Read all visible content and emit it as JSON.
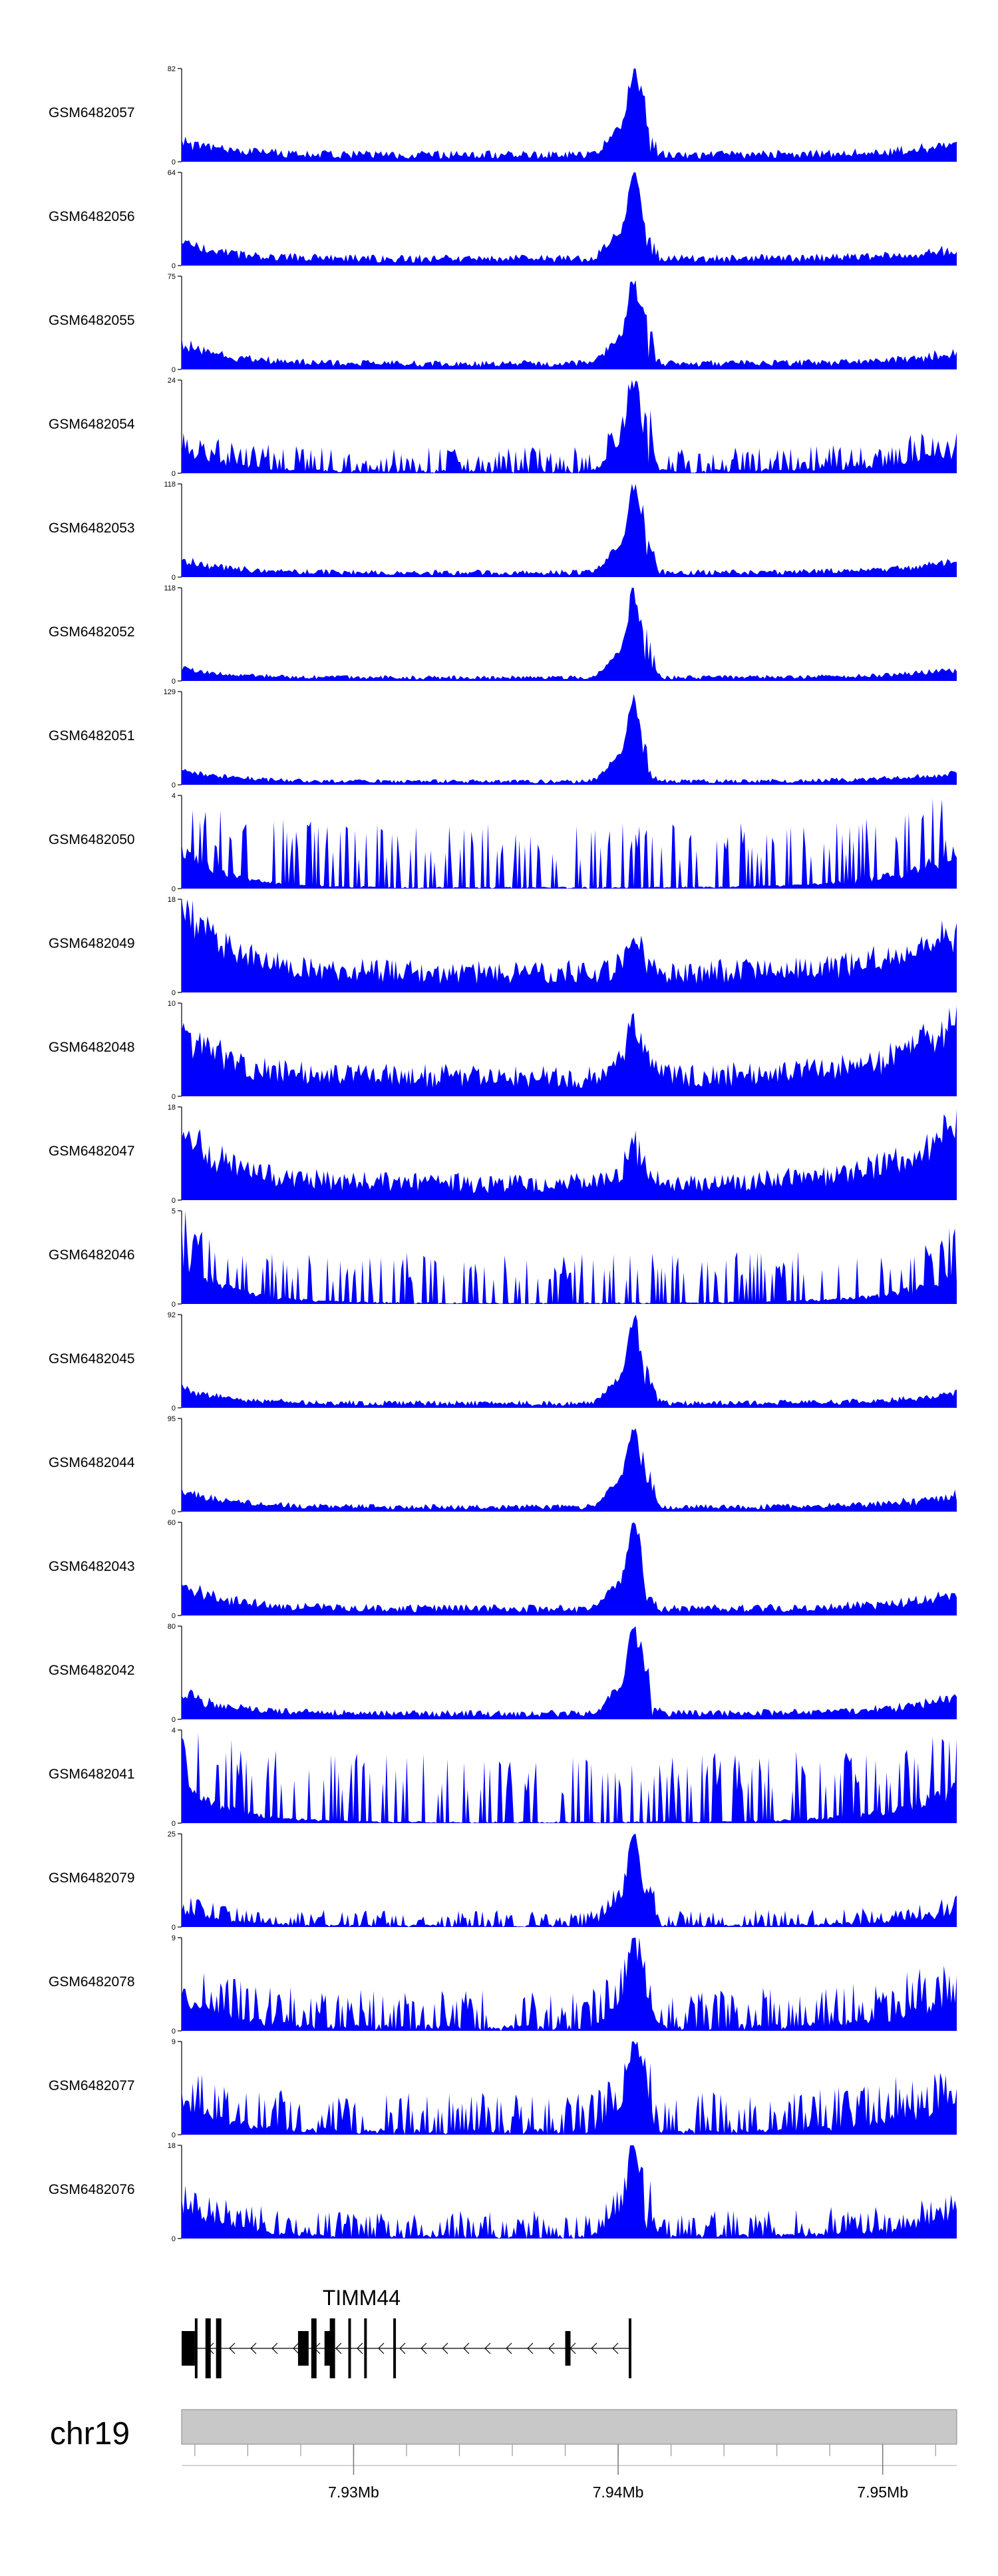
{
  "chart_data": {
    "type": "area",
    "chromosome": "chr19",
    "x_range": [
      7.9235,
      7.9528
    ],
    "x_unit": "Mb",
    "x_ticks": [
      "7.93Mb",
      "7.94Mb",
      "7.95Mb"
    ],
    "x_tick_values": [
      7.93,
      7.94,
      7.95
    ],
    "series": [
      {
        "name": "GSM6482057",
        "ymax": 82,
        "ytick_top": "82",
        "ytick_bottom": "0",
        "profile": "peak",
        "noise": 0.12,
        "edge_left": 0.18,
        "edge_right": 0.16,
        "peak_height": 1.0,
        "seed": 11
      },
      {
        "name": "GSM6482056",
        "ymax": 64,
        "ytick_top": "64",
        "ytick_bottom": "0",
        "profile": "peak",
        "noise": 0.12,
        "edge_left": 0.22,
        "edge_right": 0.14,
        "peak_height": 1.0,
        "seed": 12
      },
      {
        "name": "GSM6482055",
        "ymax": 75,
        "ytick_top": "75",
        "ytick_bottom": "0",
        "profile": "peak",
        "noise": 0.1,
        "edge_left": 0.28,
        "edge_right": 0.16,
        "peak_height": 1.0,
        "seed": 13
      },
      {
        "name": "GSM6482054",
        "ymax": 24,
        "ytick_top": "24",
        "ytick_bottom": "0",
        "profile": "peak-spiky",
        "noise": 0.28,
        "edge_left": 0.3,
        "edge_right": 0.3,
        "peak_height": 1.0,
        "seed": 14
      },
      {
        "name": "GSM6482053",
        "ymax": 118,
        "ytick_top": "118",
        "ytick_bottom": "0",
        "profile": "peak",
        "noise": 0.08,
        "edge_left": 0.18,
        "edge_right": 0.16,
        "peak_height": 1.0,
        "seed": 15
      },
      {
        "name": "GSM6482052",
        "ymax": 118,
        "ytick_top": "118",
        "ytick_bottom": "0",
        "profile": "peak",
        "noise": 0.06,
        "edge_left": 0.12,
        "edge_right": 0.12,
        "peak_height": 0.97,
        "seed": 16
      },
      {
        "name": "GSM6482051",
        "ymax": 129,
        "ytick_top": "129",
        "ytick_bottom": "0",
        "profile": "peak",
        "noise": 0.06,
        "edge_left": 0.16,
        "edge_right": 0.12,
        "peak_height": 0.97,
        "seed": 17
      },
      {
        "name": "GSM6482050",
        "ymax": 4,
        "ytick_top": "4",
        "ytick_bottom": "0",
        "profile": "spiky",
        "noise": 0.7,
        "edge_left": 0.5,
        "edge_right": 0.5,
        "peak_height": 0.6,
        "seed": 18
      },
      {
        "name": "GSM6482049",
        "ymax": 18,
        "ytick_top": "18",
        "ytick_bottom": "0",
        "profile": "noisy-high",
        "noise": 0.35,
        "edge_left": 0.95,
        "edge_right": 0.65,
        "peak_height": 0.55,
        "seed": 19
      },
      {
        "name": "GSM6482048",
        "ymax": 10,
        "ytick_top": "10",
        "ytick_bottom": "0",
        "profile": "noisy-high",
        "noise": 0.35,
        "edge_left": 0.65,
        "edge_right": 0.85,
        "peak_height": 0.8,
        "seed": 20
      },
      {
        "name": "GSM6482047",
        "ymax": 18,
        "ytick_top": "18",
        "ytick_bottom": "0",
        "profile": "noisy-high",
        "noise": 0.3,
        "edge_left": 0.75,
        "edge_right": 0.85,
        "peak_height": 0.5,
        "seed": 21
      },
      {
        "name": "GSM6482046",
        "ymax": 5,
        "ytick_top": "5",
        "ytick_bottom": "0",
        "profile": "spiky",
        "noise": 0.55,
        "edge_left": 0.6,
        "edge_right": 0.4,
        "peak_height": 0.5,
        "seed": 22
      },
      {
        "name": "GSM6482045",
        "ymax": 92,
        "ytick_top": "92",
        "ytick_bottom": "0",
        "profile": "peak",
        "noise": 0.08,
        "edge_left": 0.2,
        "edge_right": 0.14,
        "peak_height": 0.95,
        "seed": 23
      },
      {
        "name": "GSM6482044",
        "ymax": 95,
        "ytick_top": "95",
        "ytick_bottom": "0",
        "profile": "peak",
        "noise": 0.08,
        "edge_left": 0.22,
        "edge_right": 0.18,
        "peak_height": 0.97,
        "seed": 24
      },
      {
        "name": "GSM6482043",
        "ymax": 60,
        "ytick_top": "60",
        "ytick_bottom": "0",
        "profile": "peak",
        "noise": 0.12,
        "edge_left": 0.32,
        "edge_right": 0.22,
        "peak_height": 0.98,
        "seed": 25
      },
      {
        "name": "GSM6482042",
        "ymax": 80,
        "ytick_top": "80",
        "ytick_bottom": "0",
        "profile": "peak",
        "noise": 0.1,
        "edge_left": 0.28,
        "edge_right": 0.24,
        "peak_height": 0.97,
        "seed": 26
      },
      {
        "name": "GSM6482041",
        "ymax": 4,
        "ytick_top": "4",
        "ytick_bottom": "0",
        "profile": "spiky",
        "noise": 0.75,
        "edge_left": 0.5,
        "edge_right": 0.5,
        "peak_height": 0.6,
        "seed": 27
      },
      {
        "name": "GSM6482079",
        "ymax": 25,
        "ytick_top": "25",
        "ytick_bottom": "0",
        "profile": "peak-spiky",
        "noise": 0.18,
        "edge_left": 0.2,
        "edge_right": 0.2,
        "peak_height": 0.95,
        "seed": 28
      },
      {
        "name": "GSM6482078",
        "ymax": 9,
        "ytick_top": "9",
        "ytick_bottom": "0",
        "profile": "peak-spiky",
        "noise": 0.45,
        "edge_left": 0.45,
        "edge_right": 0.45,
        "peak_height": 0.95,
        "seed": 29
      },
      {
        "name": "GSM6482077",
        "ymax": 9,
        "ytick_top": "9",
        "ytick_bottom": "0",
        "profile": "peak-spiky",
        "noise": 0.45,
        "edge_left": 0.4,
        "edge_right": 0.5,
        "peak_height": 0.95,
        "seed": 30
      },
      {
        "name": "GSM6482076",
        "ymax": 18,
        "ytick_top": "18",
        "ytick_bottom": "0",
        "profile": "peak-spiky",
        "noise": 0.3,
        "edge_left": 0.4,
        "edge_right": 0.3,
        "peak_height": 0.95,
        "seed": 31
      }
    ],
    "peak_center_mb": 7.9406,
    "gene": {
      "name": "TIMM44",
      "strand": "-",
      "start_mb": 7.9235,
      "end_mb": 7.9405,
      "exons_mb": [
        [
          7.9235,
          7.924
        ],
        [
          7.924,
          7.9241
        ],
        [
          7.9244,
          7.9246
        ],
        [
          7.9248,
          7.925
        ],
        [
          7.9279,
          7.9283
        ],
        [
          7.9284,
          7.9286
        ],
        [
          7.9289,
          7.9292
        ],
        [
          7.9291,
          7.9293
        ],
        [
          7.9298,
          7.9299
        ],
        [
          7.9304,
          7.9305
        ],
        [
          7.9315,
          7.9316
        ],
        [
          7.938,
          7.9382
        ],
        [
          7.9404,
          7.9405
        ]
      ]
    },
    "colors": {
      "coverage": "#0000ff",
      "ideogram": "#c8c8c8",
      "axis": "#000000"
    }
  }
}
